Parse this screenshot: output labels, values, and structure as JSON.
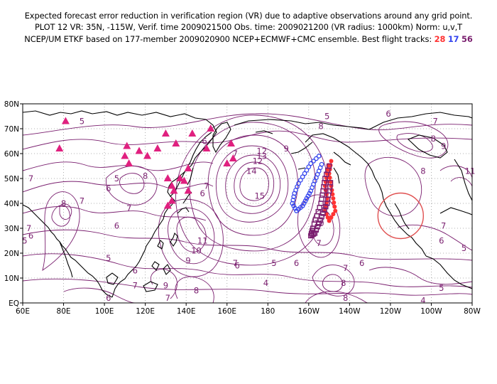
{
  "header": {
    "line1": "Expected forecast error reduction in verification region (VR) due to adaptive observations around any grid point.",
    "line2": "PLOT 12 VR: 35N, -115W, Verif. time 2009021500 Obs. time: 2009021200 (VR radius: 1000km) Norm: u,v,T",
    "line3_prefix": "NCEP/UM ETKF based on 177-member 2009020900 NCEP+ECMWF+CMC ensemble. Best flight tracks:",
    "flight_red": "28",
    "flight_blue": "17",
    "flight_purple": "56"
  },
  "axes": {
    "lat_labels": [
      "80N",
      "70N",
      "60N",
      "50N",
      "40N",
      "30N",
      "20N",
      "10N",
      "EQ"
    ],
    "lon_labels": [
      "60E",
      "80E",
      "100E",
      "120E",
      "140E",
      "160E",
      "180",
      "160W",
      "140W",
      "120W",
      "100W",
      "80W"
    ]
  },
  "colors": {
    "contour": "#7a1f6f",
    "coast": "#000000",
    "grid": "#999999",
    "triangle": "#e0207f",
    "track_red": "#ff3333",
    "track_blue": "#3344ee",
    "track_purple": "#7a1f6f",
    "vr_circle": "#e05050"
  },
  "contour_labels": [
    {
      "t": "5",
      "lon": 89,
      "lat": 73
    },
    {
      "t": "5",
      "lon": 106,
      "lat": 50
    },
    {
      "t": "6",
      "lon": 102,
      "lat": 46
    },
    {
      "t": "7",
      "lon": 64,
      "lat": 50
    },
    {
      "t": "7",
      "lon": 89,
      "lat": 41
    },
    {
      "t": "8",
      "lon": 80,
      "lat": 40
    },
    {
      "t": "7",
      "lon": 112,
      "lat": 38
    },
    {
      "t": "6",
      "lon": 106,
      "lat": 31
    },
    {
      "t": "8",
      "lon": 120,
      "lat": 51
    },
    {
      "t": "7",
      "lon": 63,
      "lat": 30
    },
    {
      "t": "6",
      "lon": 64,
      "lat": 27
    },
    {
      "t": "5",
      "lon": 61,
      "lat": 25
    },
    {
      "t": "5",
      "lon": 102,
      "lat": 18
    },
    {
      "t": "6",
      "lon": 115,
      "lat": 13
    },
    {
      "t": "7",
      "lon": 115,
      "lat": 7
    },
    {
      "t": "9",
      "lon": 130,
      "lat": 7
    },
    {
      "t": "8",
      "lon": 145,
      "lat": 5
    },
    {
      "t": "6",
      "lon": 102,
      "lat": 2
    },
    {
      "t": "7",
      "lon": 131,
      "lat": 2
    },
    {
      "t": "5",
      "lon": 209,
      "lat": 75
    },
    {
      "t": "6",
      "lon": 149,
      "lat": 65
    },
    {
      "t": "7",
      "lon": 164,
      "lat": 60
    },
    {
      "t": "9",
      "lon": 189,
      "lat": 62
    },
    {
      "t": "12",
      "lon": 177,
      "lat": 61
    },
    {
      "t": "12",
      "lon": 175,
      "lat": 57
    },
    {
      "t": "13",
      "lon": 177,
      "lat": 59
    },
    {
      "t": "14",
      "lon": 172,
      "lat": 53
    },
    {
      "t": "15",
      "lon": 176,
      "lat": 43
    },
    {
      "t": "6",
      "lon": 148,
      "lat": 44
    },
    {
      "t": "7",
      "lon": 150,
      "lat": 47
    },
    {
      "t": "11",
      "lon": 148,
      "lat": 25
    },
    {
      "t": "10",
      "lon": 145,
      "lat": 21
    },
    {
      "t": "9",
      "lon": 141,
      "lat": 17
    },
    {
      "t": "7",
      "lon": 164,
      "lat": 16
    },
    {
      "t": "6",
      "lon": 165,
      "lat": 15
    },
    {
      "t": "5",
      "lon": 183,
      "lat": 16
    },
    {
      "t": "6",
      "lon": 194,
      "lat": 16
    },
    {
      "t": "4",
      "lon": 179,
      "lat": 8
    },
    {
      "t": "8",
      "lon": 206,
      "lat": 71
    },
    {
      "t": "10",
      "lon": 205,
      "lat": 32
    },
    {
      "t": "7",
      "lon": 205,
      "lat": 24
    },
    {
      "t": "7",
      "lon": 218,
      "lat": 14
    },
    {
      "t": "6",
      "lon": 226,
      "lat": 16
    },
    {
      "t": "8",
      "lon": 217,
      "lat": 8
    },
    {
      "t": "8",
      "lon": 218,
      "lat": 2
    },
    {
      "t": "6",
      "lon": 239,
      "lat": 76
    },
    {
      "t": "7",
      "lon": 262,
      "lat": 73
    },
    {
      "t": "8",
      "lon": 261,
      "lat": 66
    },
    {
      "t": "9",
      "lon": 266,
      "lat": 63
    },
    {
      "t": "8",
      "lon": 256,
      "lat": 53
    },
    {
      "t": "11",
      "lon": 279,
      "lat": 53
    },
    {
      "t": "7",
      "lon": 266,
      "lat": 31
    },
    {
      "t": "6",
      "lon": 265,
      "lat": 25
    },
    {
      "t": "5",
      "lon": 276,
      "lat": 22
    },
    {
      "t": "5",
      "lon": 265,
      "lat": 6
    },
    {
      "t": "4",
      "lon": 256,
      "lat": 1
    }
  ],
  "stations": [
    [
      81,
      73
    ],
    [
      78,
      62
    ],
    [
      111,
      63
    ],
    [
      110,
      59
    ],
    [
      112,
      56
    ],
    [
      117,
      61
    ],
    [
      121,
      59
    ],
    [
      126,
      62
    ],
    [
      130,
      68
    ],
    [
      135,
      64
    ],
    [
      143,
      68
    ],
    [
      152,
      70
    ],
    [
      150,
      62
    ],
    [
      162,
      64
    ],
    [
      163,
      58
    ],
    [
      160,
      56
    ],
    [
      141,
      54
    ],
    [
      137,
      50
    ],
    [
      131,
      50
    ],
    [
      133,
      47
    ],
    [
      134,
      45
    ],
    [
      139,
      49
    ],
    [
      141,
      45
    ],
    [
      133,
      41
    ],
    [
      131,
      39
    ]
  ],
  "vr_circle": {
    "lon": 245,
    "lat": 35
  }
}
